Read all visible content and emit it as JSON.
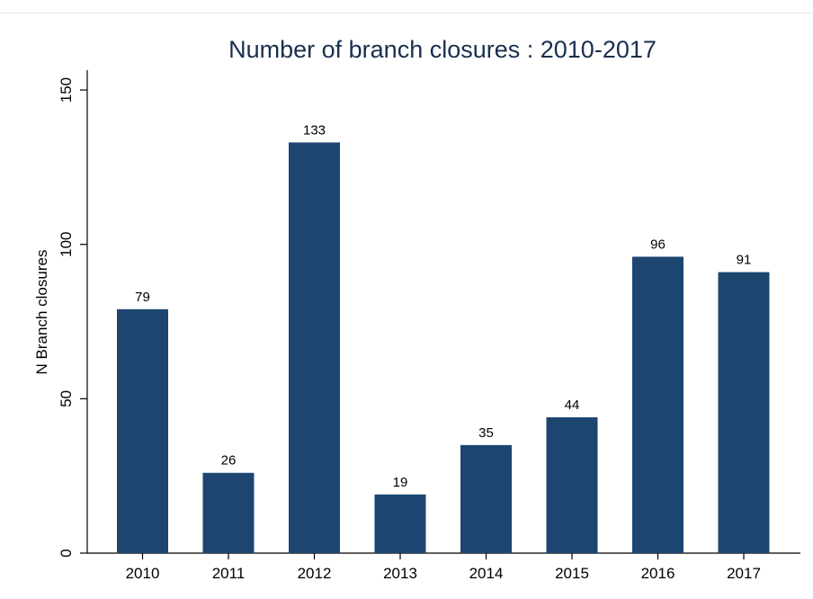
{
  "chart_data": {
    "type": "bar",
    "title": "Number of branch closures : 2010-2017",
    "ylabel": "N Branch closures",
    "xlabel": "",
    "categories": [
      "2010",
      "2011",
      "2012",
      "2013",
      "2014",
      "2015",
      "2016",
      "2017"
    ],
    "values": [
      79,
      26,
      133,
      19,
      35,
      44,
      96,
      91
    ],
    "data_labels": [
      "79",
      "26",
      "133",
      "19",
      "35",
      "44",
      "96",
      "91"
    ],
    "ylim": [
      0,
      155
    ],
    "yticks": [
      0,
      50,
      100,
      150
    ],
    "ytick_labels": [
      "0",
      "50",
      "100",
      "150"
    ],
    "grid": false,
    "legend": "none",
    "bar_color": "#1c4670"
  }
}
